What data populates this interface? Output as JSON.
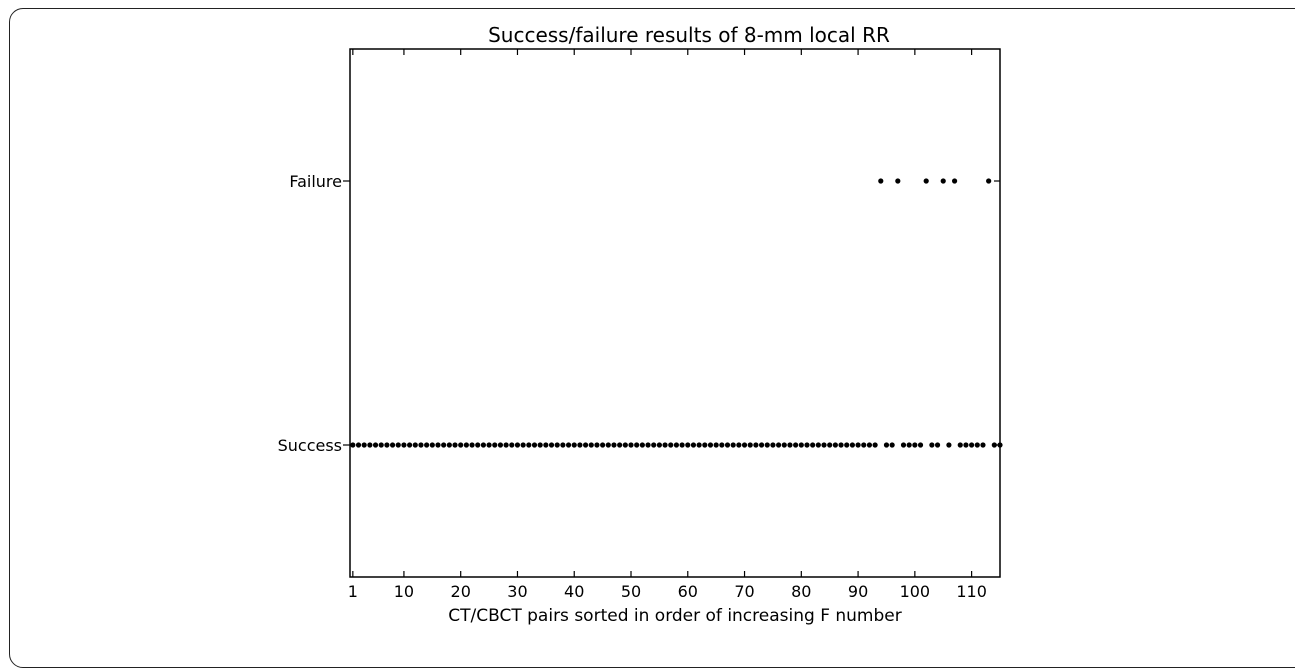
{
  "chart_data": {
    "type": "scatter",
    "title": "Success/failure results of 8-mm local RR",
    "xlabel": "CT/CBCT pairs sorted in order of increasing F number",
    "ylabel": "",
    "xlim": [
      0.5,
      115
    ],
    "ylim": [
      -0.5,
      1.5
    ],
    "x_ticks": [
      1,
      10,
      20,
      30,
      40,
      50,
      60,
      70,
      80,
      90,
      100,
      110
    ],
    "y_ticks": [
      {
        "value": 0,
        "label": "Success"
      },
      {
        "value": 1,
        "label": "Failure"
      }
    ],
    "grid": false,
    "marker_color": "#000000",
    "failure_pairs": [
      94,
      97,
      102,
      105,
      107,
      113
    ],
    "total_pairs": 115
  }
}
